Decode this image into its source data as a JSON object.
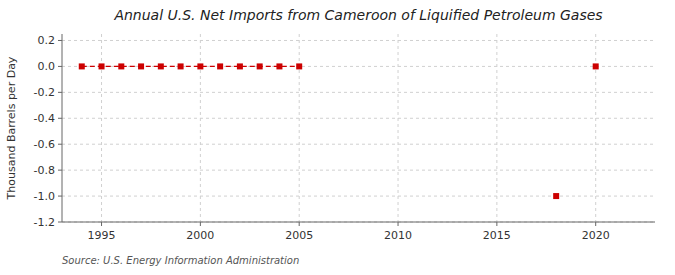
{
  "chart_data": {
    "type": "line",
    "title": "Annual U.S. Net Imports from Cameroon of Liquified Petroleum Gases",
    "ylabel": "Thousand Barrels per Day",
    "source": "Source: U.S. Energy Information Administration",
    "x": [
      1994,
      1995,
      1996,
      1997,
      1998,
      1999,
      2000,
      2001,
      2002,
      2003,
      2004,
      2005,
      2006,
      2007,
      2008,
      2009,
      2010,
      2011,
      2012,
      2013,
      2014,
      2015,
      2016,
      2017,
      2018,
      2019,
      2020
    ],
    "series": [
      {
        "color": "#cc0000",
        "marker": "square",
        "line_style": "dashed",
        "values": [
          0,
          0,
          0,
          0,
          0,
          0,
          0,
          0,
          0,
          0,
          0,
          0,
          null,
          null,
          null,
          null,
          null,
          null,
          null,
          null,
          null,
          null,
          null,
          null,
          -1,
          null,
          0
        ]
      }
    ],
    "xlim": [
      1993,
      2023
    ],
    "ylim": [
      -1.2,
      0.25
    ],
    "xticks": [
      1995,
      2000,
      2005,
      2010,
      2015,
      2020
    ],
    "yticks": [
      0.2,
      {
        "value": 0.0,
        "label": "0.0"
      },
      -0.2,
      -0.4,
      -0.6,
      -0.8,
      {
        "value": -1.0,
        "label": "-1.0"
      },
      -1.2
    ],
    "grid": true
  }
}
